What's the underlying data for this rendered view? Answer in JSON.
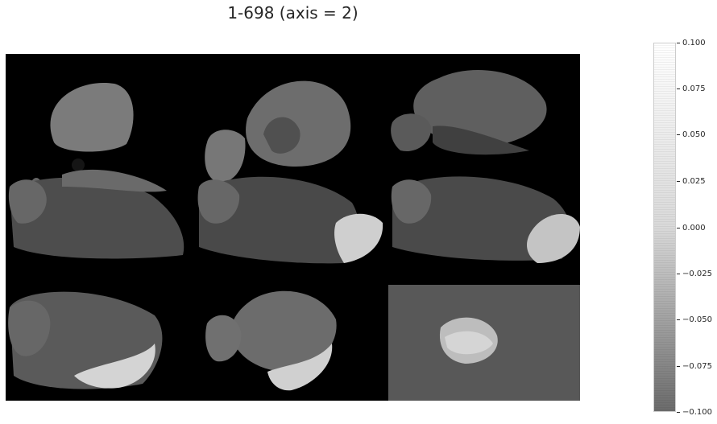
{
  "figure": {
    "title": "1-698 (axis = 2)"
  },
  "colorbar": {
    "ticks": [
      "0.100",
      "0.075",
      "0.050",
      "0.025",
      "0.000",
      "−0.025",
      "−0.050",
      "−0.075",
      "−0.100"
    ],
    "range": [
      -0.1,
      0.1
    ],
    "colormap": "greys-transparent"
  },
  "mosaic": {
    "grid": "3x3",
    "background_color": "#000000",
    "last_panel_background": "#585858",
    "slice_fill": "#676767",
    "overlay_fill": "#d9d9d9"
  }
}
